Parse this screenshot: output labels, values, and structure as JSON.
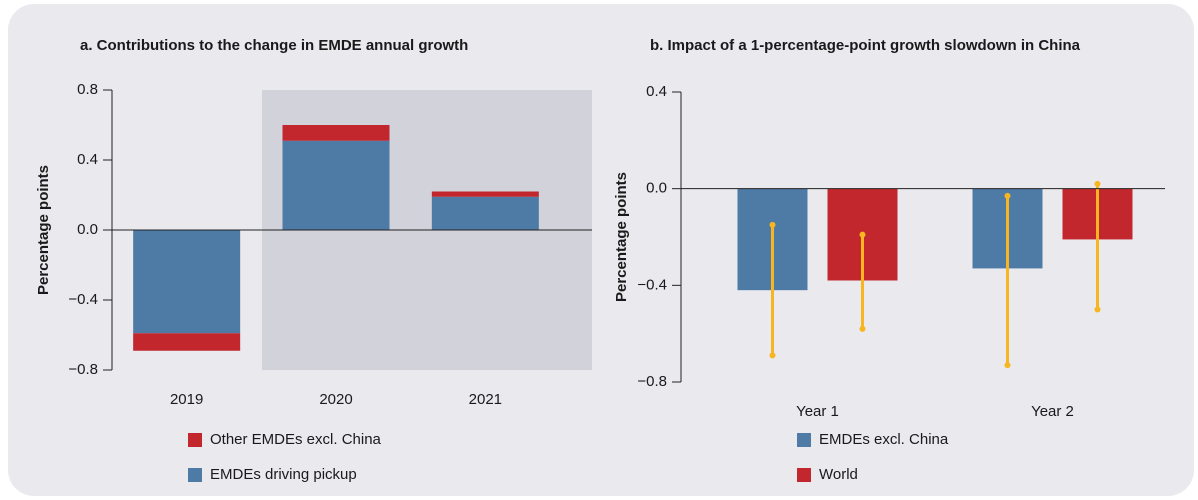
{
  "chart_data": [
    {
      "type": "bar",
      "stacked": true,
      "title": "a. Contributions to the change in EMDE annual growth",
      "y_label": "Percentage points",
      "categories": [
        "2019",
        "2020",
        "2021"
      ],
      "series": [
        {
          "name": "EMDEs driving pickup",
          "color": "#4e7aa6",
          "values": [
            -0.59,
            0.51,
            0.19
          ]
        },
        {
          "name": "Other EMDEs excl. China",
          "color": "#c1272d",
          "values": [
            -0.1,
            0.09,
            0.03
          ]
        }
      ],
      "legend_order": "reverse",
      "ylim": [
        -0.8,
        0.8
      ],
      "yticks": [
        {
          "value": -0.8,
          "label": "−0.8"
        },
        {
          "value": -0.4,
          "label": "−0.4"
        },
        {
          "value": 0,
          "label": "0.0"
        },
        0.4,
        0.8
      ]
    },
    {
      "type": "bar",
      "stacked": false,
      "title": "b. Impact of a 1-percentage-point growth slowdown in China",
      "y_label": "Percentage points",
      "categories": [
        "Year 1",
        "Year 2"
      ],
      "series": [
        {
          "name": "EMDEs excl. China",
          "color": "#4e7aa6",
          "values": [
            -0.42,
            -0.33
          ],
          "error_low": [
            -0.69,
            -0.73
          ],
          "error_high": [
            -0.15,
            -0.03
          ]
        },
        {
          "name": "World",
          "color": "#c1272d",
          "values": [
            -0.38,
            -0.21
          ],
          "error_low": [
            -0.58,
            -0.5
          ],
          "error_high": [
            -0.19,
            0.02
          ]
        }
      ],
      "error_color": "#f7b520",
      "legend_order": "normal",
      "ylim": [
        -0.8,
        0.4
      ],
      "yticks": [
        {
          "value": -0.8,
          "label": "−0.8"
        },
        {
          "value": -0.4,
          "label": "−0.4"
        },
        {
          "value": 0,
          "label": "0.0"
        },
        0.4
      ]
    }
  ]
}
